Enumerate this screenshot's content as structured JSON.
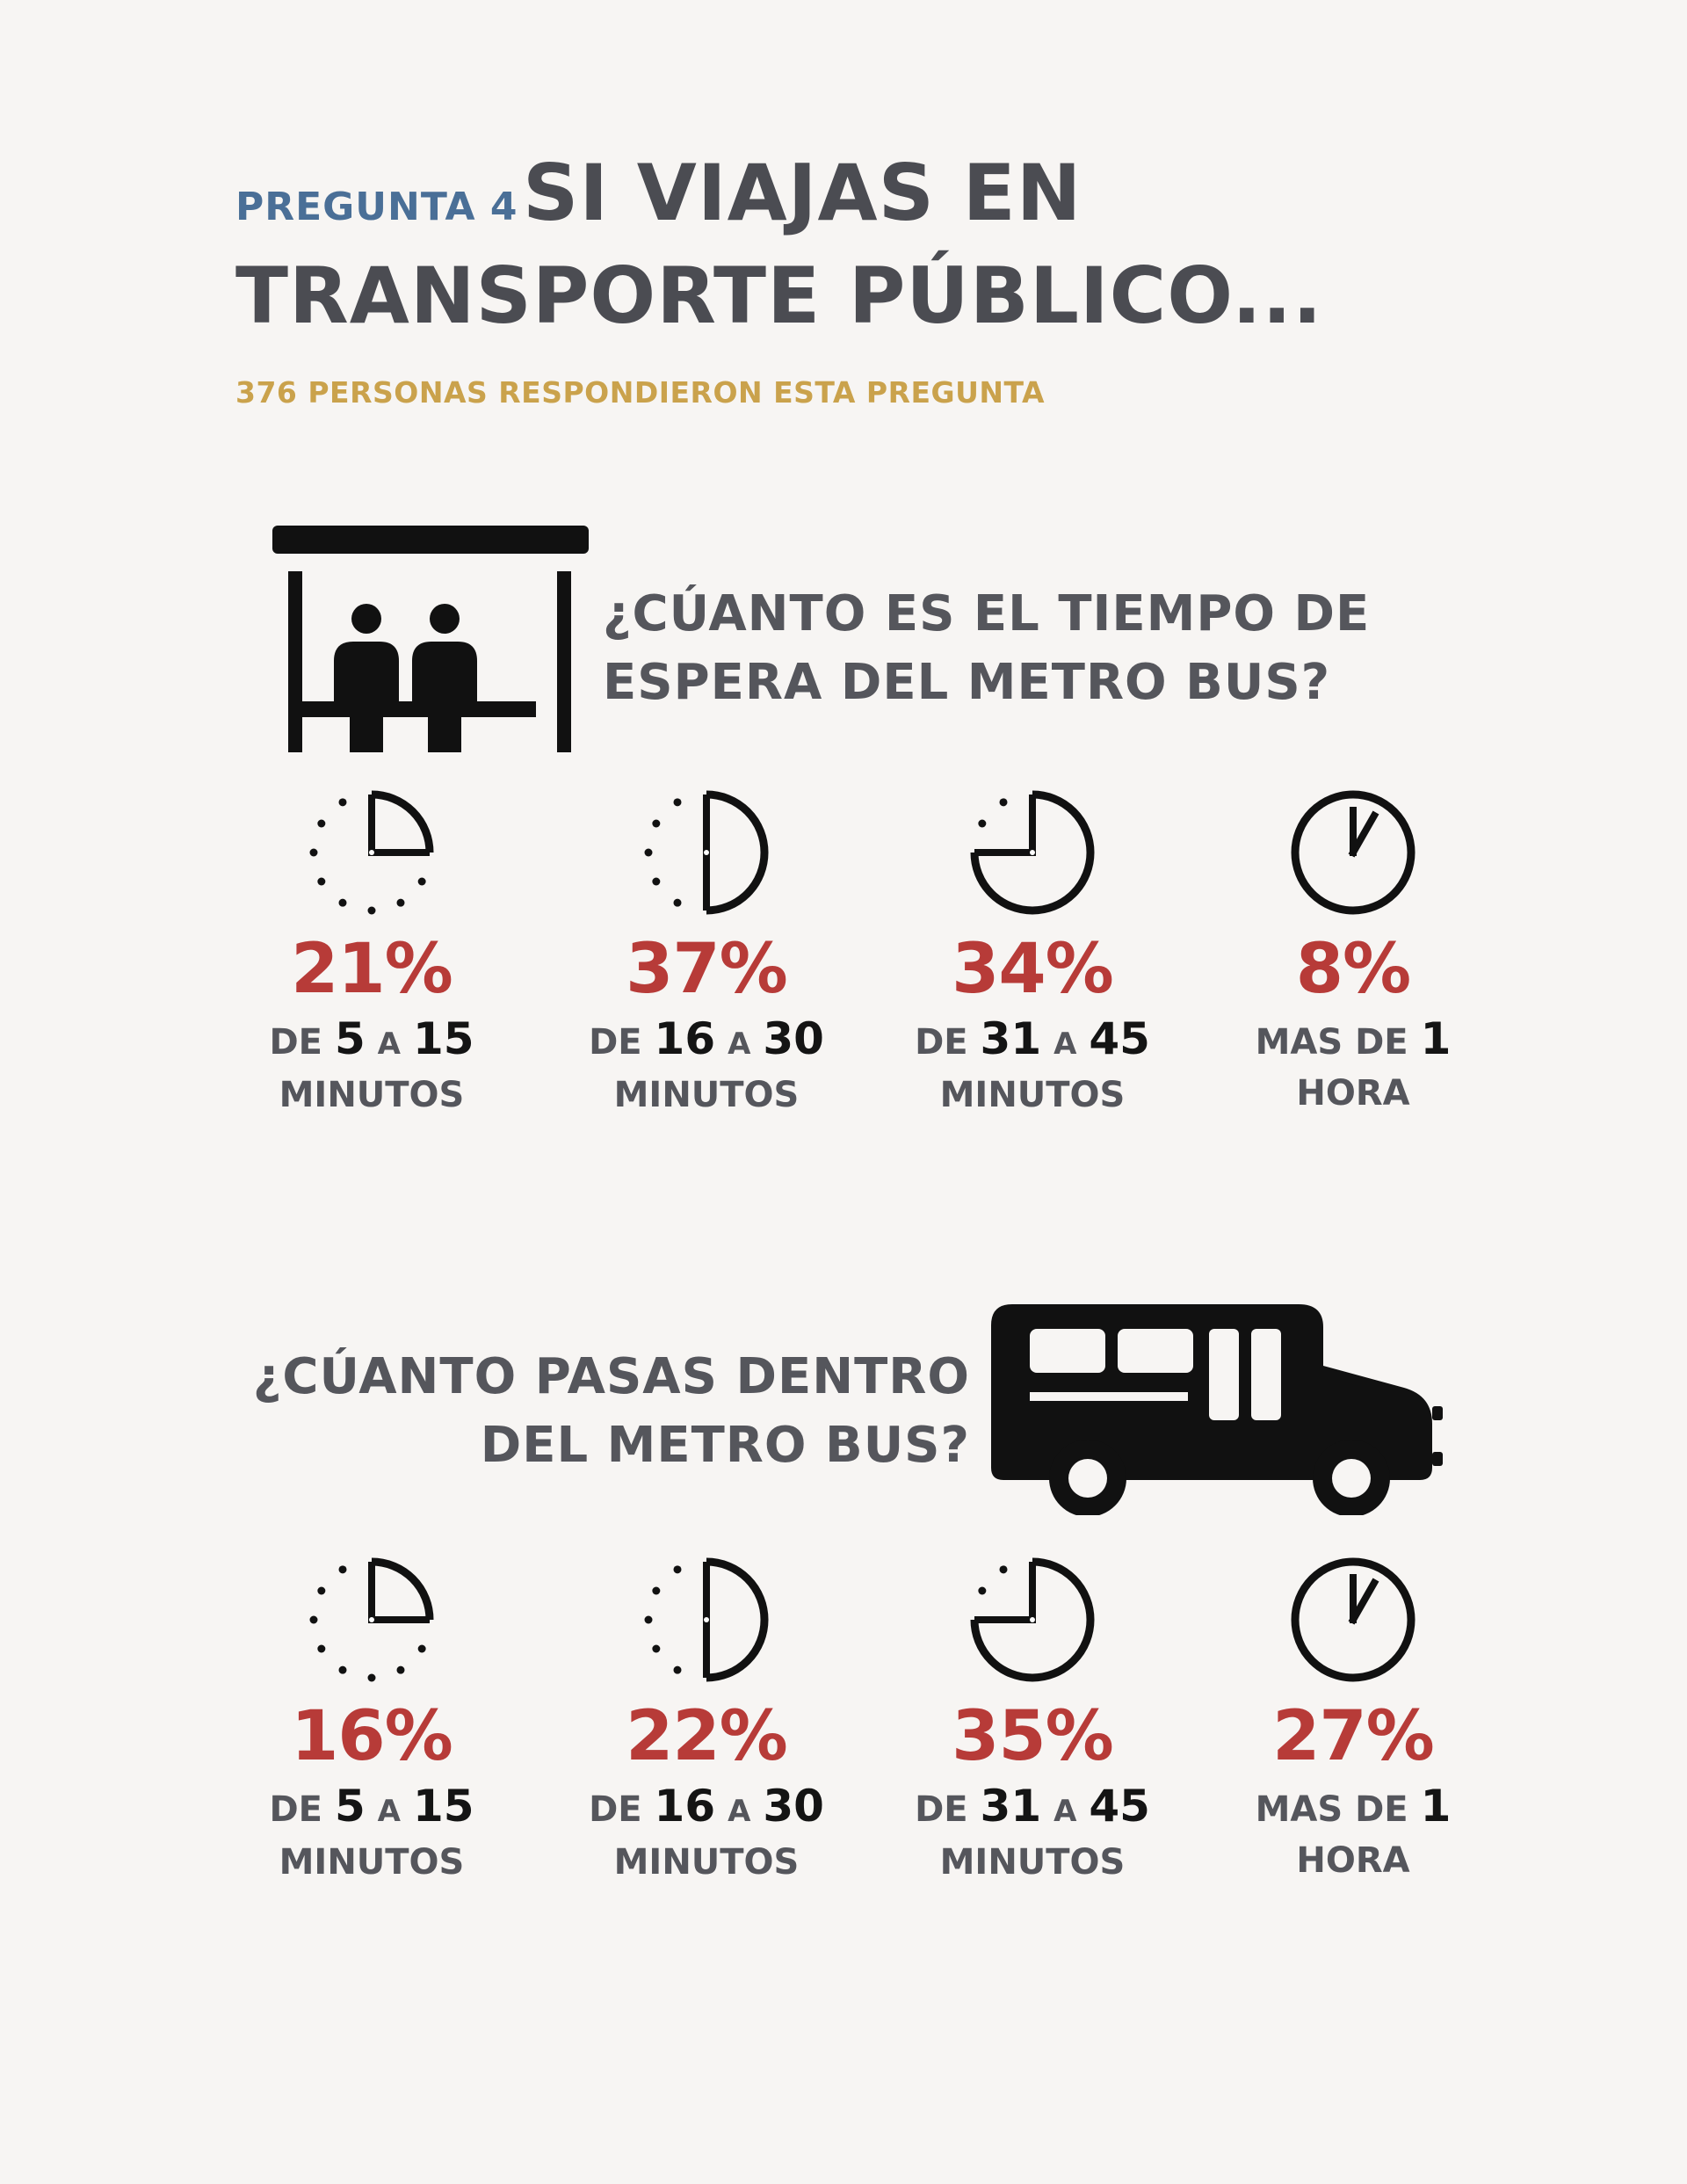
{
  "header": {
    "label": "PREGUNTA 4",
    "title_line1": "SI VIAJAS EN",
    "title_line2": "TRANSPORTE PÚBLICO...",
    "subtitle": "376 PERSONAS RESPONDIERON ESTA PREGUNTA"
  },
  "colors": {
    "background": "#f7f5f3",
    "label_blue": "#4a6f97",
    "title_gray": "#4b4c52",
    "subtitle_gold": "#caa24c",
    "percent_red": "#b73b38",
    "ink": "#111111"
  },
  "sections": [
    {
      "icon": "bus-stop-icon",
      "question_line1": "¿CÚANTO ES EL TIEMPO DE",
      "question_line2": "ESPERA DEL METRO BUS?",
      "stats": [
        {
          "icon": "clock-quarter-icon",
          "fraction": 0.25,
          "percent": "21%",
          "prefix": "DE",
          "from": "5",
          "connector": "A",
          "to": "15",
          "unit": "MINUTOS"
        },
        {
          "icon": "clock-half-icon",
          "fraction": 0.5,
          "percent": "37%",
          "prefix": "DE",
          "from": "16",
          "connector": "A",
          "to": "30",
          "unit": "MINUTOS"
        },
        {
          "icon": "clock-three-quarter-icon",
          "fraction": 0.75,
          "percent": "34%",
          "prefix": "DE",
          "from": "31",
          "connector": "A",
          "to": "45",
          "unit": "MINUTOS"
        },
        {
          "icon": "clock-full-icon",
          "fraction": 1,
          "percent": "8%",
          "prefix": "MAS DE",
          "from": "1",
          "connector": "",
          "to": "",
          "unit": "HORA"
        }
      ]
    },
    {
      "icon": "bus-icon",
      "question_line1": "¿CÚANTO PASAS DENTRO",
      "question_line2": "DEL METRO BUS?",
      "stats": [
        {
          "icon": "clock-quarter-icon",
          "fraction": 0.25,
          "percent": "16%",
          "prefix": "DE",
          "from": "5",
          "connector": "A",
          "to": "15",
          "unit": "MINUTOS"
        },
        {
          "icon": "clock-half-icon",
          "fraction": 0.5,
          "percent": "22%",
          "prefix": "DE",
          "from": "16",
          "connector": "A",
          "to": "30",
          "unit": "MINUTOS"
        },
        {
          "icon": "clock-three-quarter-icon",
          "fraction": 0.75,
          "percent": "35%",
          "prefix": "DE",
          "from": "31",
          "connector": "A",
          "to": "45",
          "unit": "MINUTOS"
        },
        {
          "icon": "clock-full-icon",
          "fraction": 1,
          "percent": "27%",
          "prefix": "MAS DE",
          "from": "1",
          "connector": "",
          "to": "",
          "unit": "HORA"
        }
      ]
    }
  ]
}
